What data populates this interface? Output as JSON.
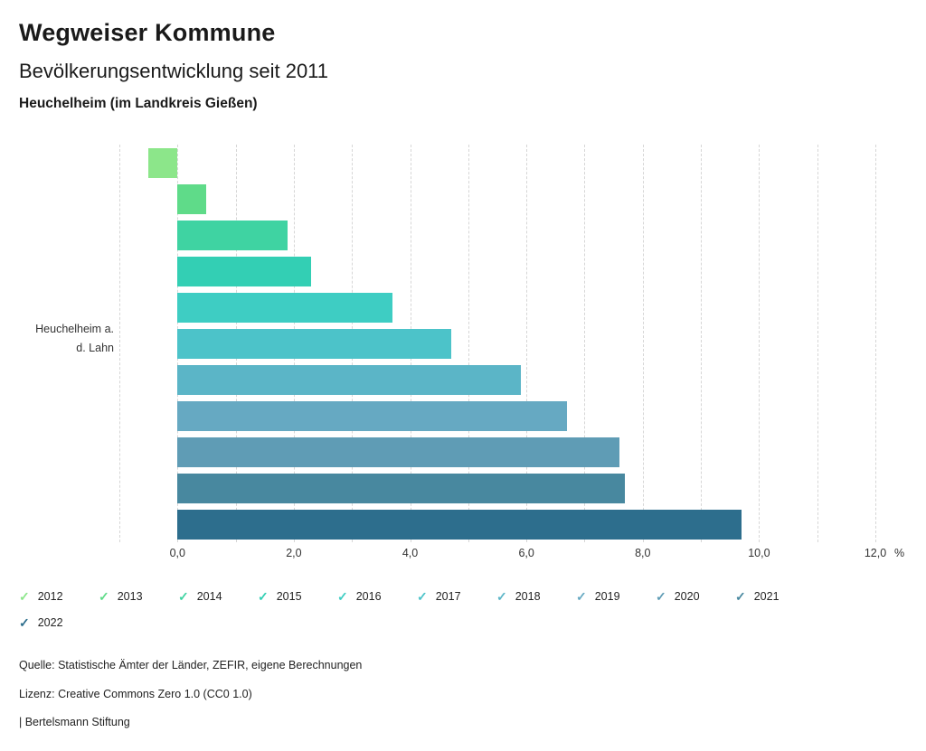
{
  "header": {
    "title": "Wegweiser Kommune",
    "subtitle": "Bevölkerungsentwicklung seit 2011",
    "region": "Heuchelheim (im Landkreis Gießen)"
  },
  "chart_data": {
    "type": "bar",
    "orientation": "horizontal",
    "group_label_lines": [
      "Heuchelheim a.",
      "d. Lahn"
    ],
    "unit": "%",
    "xlim": [
      -1,
      12
    ],
    "gridline_step": 1,
    "grid_color": "#d6d6d6",
    "x_ticks": [
      {
        "value": 0,
        "label": "0,0"
      },
      {
        "value": 2,
        "label": "2,0"
      },
      {
        "value": 4,
        "label": "4,0"
      },
      {
        "value": 6,
        "label": "6,0"
      },
      {
        "value": 8,
        "label": "8,0"
      },
      {
        "value": 10,
        "label": "10,0"
      },
      {
        "value": 12,
        "label": "12,0"
      }
    ],
    "series": [
      {
        "year": "2012",
        "value": -0.5,
        "color": "#8ce68a"
      },
      {
        "year": "2013",
        "value": 0.5,
        "color": "#5fdb89"
      },
      {
        "year": "2014",
        "value": 1.9,
        "color": "#3fd3a2"
      },
      {
        "year": "2015",
        "value": 2.3,
        "color": "#33cfb4"
      },
      {
        "year": "2016",
        "value": 3.7,
        "color": "#3ecdc3"
      },
      {
        "year": "2017",
        "value": 4.7,
        "color": "#4cc3c9"
      },
      {
        "year": "2018",
        "value": 5.9,
        "color": "#5bb5c7"
      },
      {
        "year": "2019",
        "value": 6.7,
        "color": "#66a9c2"
      },
      {
        "year": "2020",
        "value": 7.6,
        "color": "#5f9cb5"
      },
      {
        "year": "2021",
        "value": 7.7,
        "color": "#48889f"
      },
      {
        "year": "2022",
        "value": 9.7,
        "color": "#2d6e8d"
      }
    ]
  },
  "legend": {
    "check_glyph": "✓"
  },
  "footer": {
    "source": "Quelle: Statistische Ämter der Länder, ZEFIR, eigene Berechnungen",
    "license": "Lizenz: Creative Commons Zero 1.0 (CC0 1.0)",
    "attribution": "| Bertelsmann Stiftung"
  }
}
